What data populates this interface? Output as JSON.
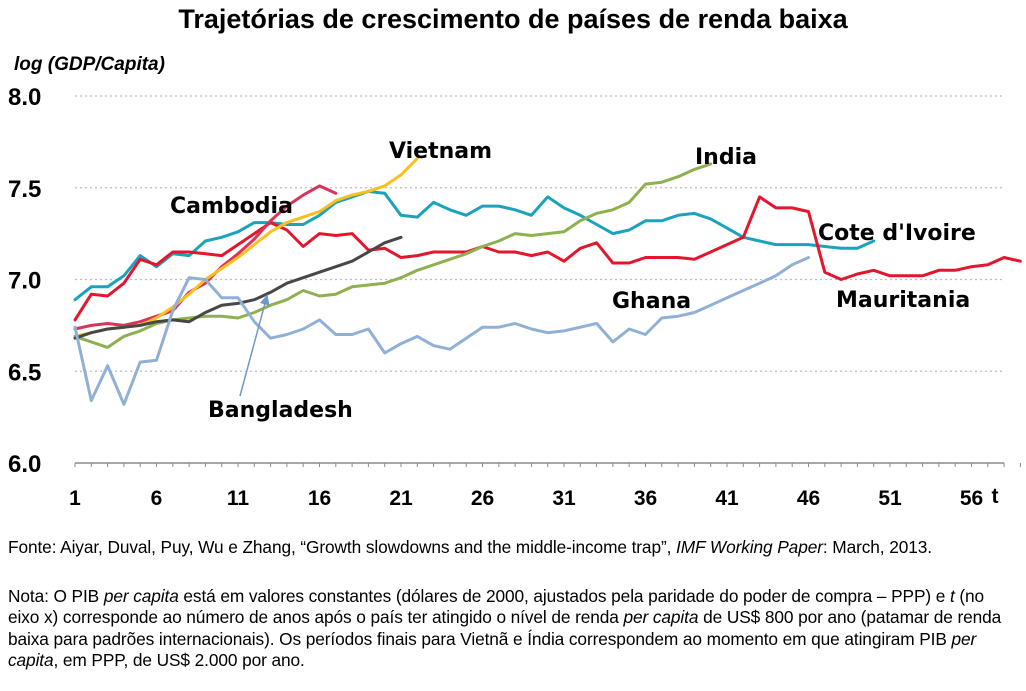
{
  "chart_data": {
    "type": "line",
    "title": "Trajetórias de crescimento de países de renda baixa",
    "ylabel": "log (GDP/Capita)",
    "xlabel": "t",
    "xlim": [
      1,
      59
    ],
    "ylim": [
      6.0,
      8.0
    ],
    "x_ticks": [
      1,
      6,
      11,
      16,
      21,
      26,
      31,
      36,
      41,
      46,
      51,
      56
    ],
    "y_ticks": [
      "6.0",
      "6.5",
      "7.0",
      "7.5",
      "8.0"
    ],
    "grid": true,
    "series": [
      {
        "name": "Cote d'Ivoire",
        "color": "#1ba3bd",
        "x": [
          1,
          2,
          3,
          4,
          5,
          6,
          7,
          8,
          9,
          10,
          11,
          12,
          13,
          14,
          15,
          16,
          17,
          18,
          19,
          20,
          21,
          22,
          23,
          24,
          25,
          26,
          27,
          28,
          29,
          30,
          31,
          32,
          33,
          34,
          35,
          36,
          37,
          38,
          39,
          40,
          41,
          42,
          43,
          44,
          45,
          46,
          47,
          48,
          49,
          50
        ],
        "y": [
          6.89,
          6.96,
          6.96,
          7.02,
          7.13,
          7.07,
          7.14,
          7.13,
          7.21,
          7.23,
          7.26,
          7.31,
          7.31,
          7.3,
          7.3,
          7.35,
          7.42,
          7.45,
          7.48,
          7.47,
          7.35,
          7.34,
          7.42,
          7.38,
          7.35,
          7.4,
          7.4,
          7.38,
          7.35,
          7.45,
          7.39,
          7.35,
          7.3,
          7.25,
          7.27,
          7.32,
          7.32,
          7.35,
          7.36,
          7.33,
          7.28,
          7.23,
          7.21,
          7.19,
          7.19,
          7.19,
          7.18,
          7.17,
          7.17,
          7.21
        ]
      },
      {
        "name": "Mauritania",
        "color": "#e3162e",
        "x": [
          1,
          2,
          3,
          4,
          5,
          6,
          7,
          8,
          9,
          10,
          11,
          12,
          13,
          14,
          15,
          16,
          17,
          18,
          19,
          20,
          21,
          22,
          23,
          24,
          25,
          26,
          27,
          28,
          29,
          30,
          31,
          32,
          33,
          34,
          35,
          36,
          37,
          38,
          39,
          40,
          41,
          42,
          43,
          44,
          45,
          46,
          47,
          48,
          49,
          50,
          51,
          52,
          53,
          54,
          55,
          56,
          57,
          58,
          59
        ],
        "y": [
          6.78,
          6.92,
          6.91,
          6.98,
          7.11,
          7.08,
          7.15,
          7.15,
          7.14,
          7.13,
          7.19,
          7.25,
          7.31,
          7.27,
          7.18,
          7.25,
          7.24,
          7.25,
          7.16,
          7.17,
          7.12,
          7.13,
          7.15,
          7.15,
          7.15,
          7.18,
          7.15,
          7.15,
          7.13,
          7.15,
          7.1,
          7.17,
          7.2,
          7.09,
          7.09,
          7.12,
          7.12,
          7.12,
          7.11,
          7.15,
          7.19,
          7.23,
          7.45,
          7.39,
          7.39,
          7.37,
          7.04,
          7.0,
          7.03,
          7.05,
          7.02,
          7.02,
          7.02,
          7.05,
          7.05,
          7.07,
          7.08,
          7.12,
          7.1
        ]
      },
      {
        "name": "Cambodia",
        "color": "#d9345a",
        "x": [
          1,
          2,
          3,
          4,
          5,
          6,
          7,
          8,
          9,
          10,
          11,
          12,
          13,
          14,
          15,
          16,
          17
        ],
        "y": [
          6.73,
          6.75,
          6.76,
          6.75,
          6.77,
          6.8,
          6.83,
          6.93,
          6.98,
          7.07,
          7.14,
          7.22,
          7.32,
          7.4,
          7.46,
          7.51,
          7.47
        ]
      },
      {
        "name": "Vietnam",
        "color": "#fbbf1e",
        "x": [
          1,
          2,
          3,
          4,
          5,
          6,
          7,
          8,
          9,
          10,
          11,
          12,
          13,
          14,
          15,
          16,
          17,
          18,
          19,
          20,
          21,
          22
        ],
        "y": [
          6.69,
          6.71,
          6.73,
          6.74,
          6.75,
          6.79,
          6.85,
          6.92,
          7.0,
          7.06,
          7.12,
          7.19,
          7.26,
          7.31,
          7.34,
          7.37,
          7.43,
          7.46,
          7.48,
          7.51,
          7.57,
          7.66
        ]
      },
      {
        "name": "India",
        "color": "#8fb04f",
        "x": [
          1,
          2,
          3,
          4,
          5,
          6,
          7,
          8,
          9,
          10,
          11,
          12,
          13,
          14,
          15,
          16,
          17,
          18,
          19,
          20,
          21,
          22,
          23,
          24,
          25,
          26,
          27,
          28,
          29,
          30,
          31,
          32,
          33,
          34,
          35,
          36,
          37,
          38,
          39,
          40
        ],
        "y": [
          6.69,
          6.66,
          6.63,
          6.69,
          6.72,
          6.76,
          6.78,
          6.79,
          6.8,
          6.8,
          6.79,
          6.82,
          6.86,
          6.89,
          6.94,
          6.91,
          6.92,
          6.96,
          6.97,
          6.98,
          7.01,
          7.05,
          7.08,
          7.11,
          7.14,
          7.18,
          7.21,
          7.25,
          7.24,
          7.25,
          7.26,
          7.32,
          7.36,
          7.38,
          7.42,
          7.52,
          7.53,
          7.56,
          7.6,
          7.63
        ]
      },
      {
        "name": "Bangladesh",
        "color": "#474747",
        "x": [
          1,
          2,
          3,
          4,
          5,
          6,
          7,
          8,
          9,
          10,
          11,
          12,
          13,
          14,
          15,
          16,
          17,
          18,
          19,
          20,
          21
        ],
        "y": [
          6.68,
          6.71,
          6.73,
          6.74,
          6.75,
          6.77,
          6.78,
          6.77,
          6.82,
          6.86,
          6.87,
          6.89,
          6.93,
          6.98,
          7.01,
          7.04,
          7.07,
          7.1,
          7.15,
          7.2,
          7.23
        ]
      },
      {
        "name": "Ghana",
        "color": "#91b0d6",
        "x": [
          1,
          2,
          3,
          4,
          5,
          6,
          7,
          8,
          9,
          10,
          11,
          12,
          13,
          14,
          15,
          16,
          17,
          18,
          19,
          20,
          21,
          22,
          23,
          24,
          25,
          26,
          27,
          28,
          29,
          30,
          31,
          32,
          33,
          34,
          35,
          36,
          37,
          38,
          39,
          40,
          41,
          42,
          43,
          44,
          45,
          46
        ],
        "y": [
          6.74,
          6.34,
          6.53,
          6.32,
          6.55,
          6.56,
          6.83,
          7.01,
          7.0,
          6.9,
          6.9,
          6.77,
          6.68,
          6.7,
          6.73,
          6.78,
          6.7,
          6.7,
          6.73,
          6.6,
          6.65,
          6.69,
          6.64,
          6.62,
          6.68,
          6.74,
          6.74,
          6.76,
          6.73,
          6.71,
          6.72,
          6.74,
          6.76,
          6.66,
          6.73,
          6.7,
          6.79,
          6.8,
          6.82,
          6.86,
          6.9,
          6.94,
          6.98,
          7.02,
          7.08,
          7.12
        ]
      }
    ],
    "annotations": [
      {
        "text": "Vietnam",
        "series": "Vietnam"
      },
      {
        "text": "India",
        "series": "India"
      },
      {
        "text": "Cambodia",
        "series": "Cambodia"
      },
      {
        "text": "Cote d'Ivoire",
        "series": "Cote d'Ivoire"
      },
      {
        "text": "Ghana",
        "series": "Ghana"
      },
      {
        "text": "Mauritania",
        "series": "Mauritania"
      },
      {
        "text": "Bangladesh",
        "series": "Bangladesh"
      }
    ]
  },
  "footnotes": {
    "source_plain": "Fonte: Aiyar, Duval, Puy, Wu e Zhang, “Growth slowdowns and the middle-income trap”, ",
    "source_italic": "IMF Working Paper",
    "source_end": ": March, 2013.",
    "note_1": "Nota: O PIB ",
    "note_italic_1": "per capita",
    "note_2": " está em valores constantes (dólares de 2000, ajustados pela paridade do poder de compra – PPP) e ",
    "note_italic_t": "t",
    "note_3": " (no eixo x) corresponde ao número de anos após o país ter atingido o nível de renda ",
    "note_italic_2": "per capita",
    "note_4": " de US$ 800 por ano (patamar de renda baixa para padrões internacionais). Os períodos finais para Vietnã e Índia correspondem ao momento em que atingiram PIB ",
    "note_italic_3": "per capita",
    "note_5": ", em PPP, de US$ 2.000 por ano."
  }
}
